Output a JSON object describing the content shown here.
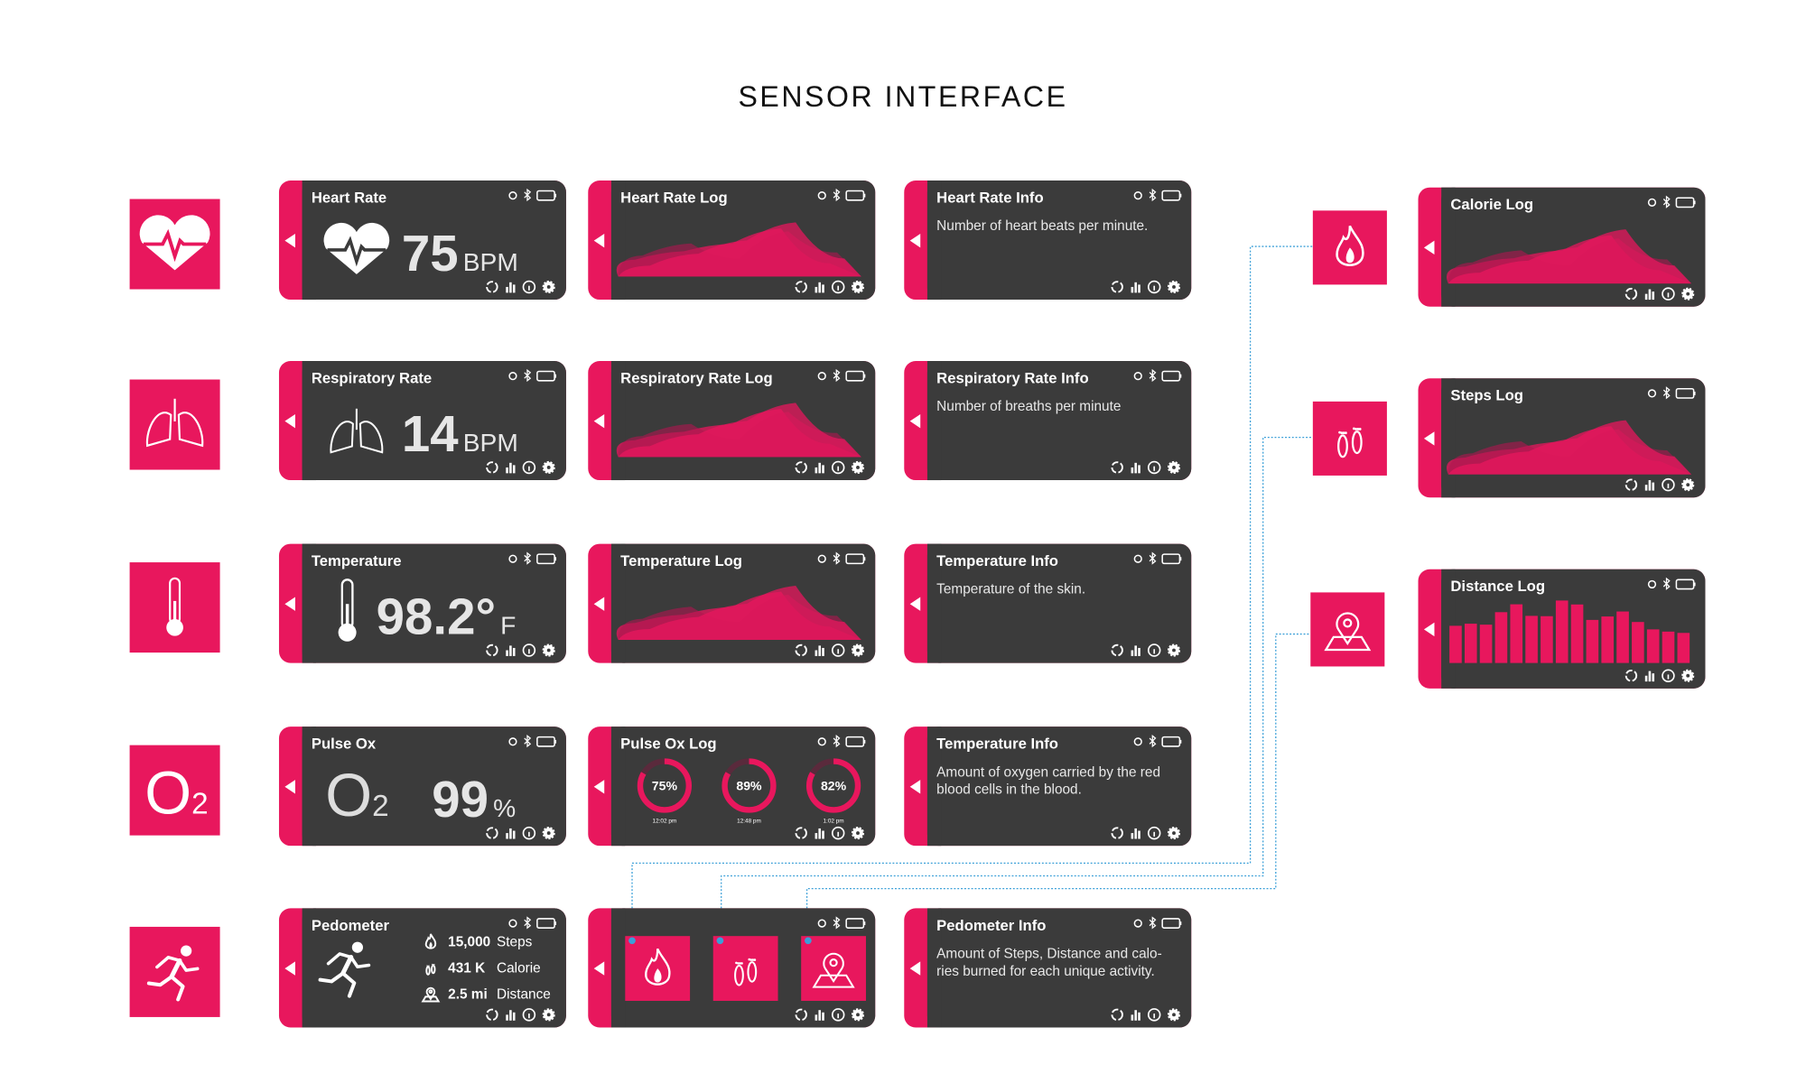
{
  "title": "SENSOR INTERFACE",
  "sensors": [
    {
      "title": "Heart Rate",
      "value": "75",
      "unit": "BPM"
    },
    {
      "title": "Respiratory Rate",
      "value": "14",
      "unit": "BPM"
    },
    {
      "title": "Temperature",
      "value": "98.2°",
      "unit": "F"
    },
    {
      "title": "Pulse Ox",
      "icon": [
        "O",
        "2"
      ],
      "value": "99",
      "unit": "%"
    },
    {
      "title": "Pedometer",
      "stats": [
        {
          "value": "15,000",
          "label": "Steps"
        },
        {
          "value": "431 K",
          "label": "Calorie"
        },
        {
          "value": "2.5 mi",
          "label": "Distance"
        }
      ]
    }
  ],
  "logs": [
    {
      "title": "Heart Rate Log"
    },
    {
      "title": "Respiratory Rate Log"
    },
    {
      "title": "Temperature Log"
    },
    {
      "title": "Pulse Ox Log",
      "rings": [
        {
          "value": "75%",
          "time": "12:02 pm"
        },
        {
          "value": "89%",
          "time": "12:48 pm"
        },
        {
          "value": "82%",
          "time": "1:02 pm"
        }
      ]
    }
  ],
  "info": [
    {
      "title": "Heart Rate Info",
      "lines": [
        "Number of heart beats per minute."
      ]
    },
    {
      "title": "Respiratory Rate Info",
      "lines": [
        "Number of breaths per minute"
      ]
    },
    {
      "title": "Temperature  Info",
      "lines": [
        "Temperature of the skin."
      ]
    },
    {
      "title": "Temperature  Info",
      "lines": [
        "Amount of oxygen carried by the red",
        "blood cells in the blood."
      ]
    },
    {
      "title": "Pedometer Info",
      "lines": [
        "Amount of Steps, Distance and calo-",
        "ries burned for each unique activity."
      ]
    }
  ],
  "activity_logs": [
    {
      "title": "Calorie Log"
    },
    {
      "title": "Steps Log"
    },
    {
      "title": "Distance Log"
    }
  ]
}
